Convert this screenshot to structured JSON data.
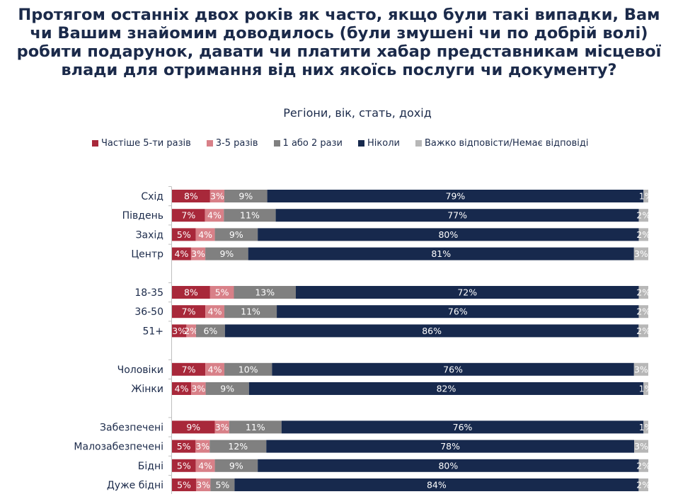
{
  "title": "Протягом останніх двох років як часто, якщо були такі випадки, Вам чи Вашим знайомим доводилось (були змушені чи по добрій волі) робити подарунок, давати чи платити хабар представникам місцевої влади для отримання від них якоїсь послуги чи документу?",
  "subtitle": "Регіони, вік, стать, дохід",
  "colors": {
    "often": "#a8283a",
    "three_five": "#d88088",
    "one_two": "#808080",
    "never": "#17294d",
    "dk": "#b7b7b7",
    "label_text": "#1b2a4a"
  },
  "chart_data": {
    "type": "bar",
    "orientation": "horizontal",
    "stacked": true,
    "percent_stacked": true,
    "legend_position": "top",
    "categories": [
      "Схід",
      "Південь",
      "Захід",
      "Центр",
      "18-35",
      "36-50",
      "51+",
      "Чоловіки",
      "Жінки",
      "Забезпечені",
      "Малозабезпечені",
      "Бідні",
      "Дуже бідні"
    ],
    "groups": [
      [
        "Схід",
        "Південь",
        "Захід",
        "Центр"
      ],
      [
        "18-35",
        "36-50",
        "51+"
      ],
      [
        "Чоловіки",
        "Жінки"
      ],
      [
        "Забезпечені",
        "Малозабезпечені",
        "Бідні",
        "Дуже бідні"
      ]
    ],
    "series": [
      {
        "name": "Частіше 5-ти разів",
        "color_key": "often",
        "values": [
          8,
          7,
          5,
          4,
          8,
          7,
          3,
          7,
          4,
          9,
          5,
          5,
          5
        ]
      },
      {
        "name": "3-5 разів",
        "color_key": "three_five",
        "values": [
          3,
          4,
          4,
          3,
          5,
          4,
          2,
          4,
          3,
          3,
          3,
          4,
          3
        ]
      },
      {
        "name": "1 або 2 рази",
        "color_key": "one_two",
        "values": [
          9,
          11,
          9,
          9,
          13,
          11,
          6,
          10,
          9,
          11,
          12,
          9,
          5
        ]
      },
      {
        "name": "Ніколи",
        "color_key": "never",
        "values": [
          79,
          77,
          80,
          81,
          72,
          76,
          86,
          76,
          82,
          76,
          78,
          80,
          84
        ]
      },
      {
        "name": "Важко відповісти/Немає відповіді",
        "color_key": "dk",
        "values": [
          1,
          2,
          2,
          3,
          2,
          2,
          2,
          3,
          1,
          1,
          3,
          2,
          2
        ]
      }
    ],
    "value_suffix": "%"
  }
}
